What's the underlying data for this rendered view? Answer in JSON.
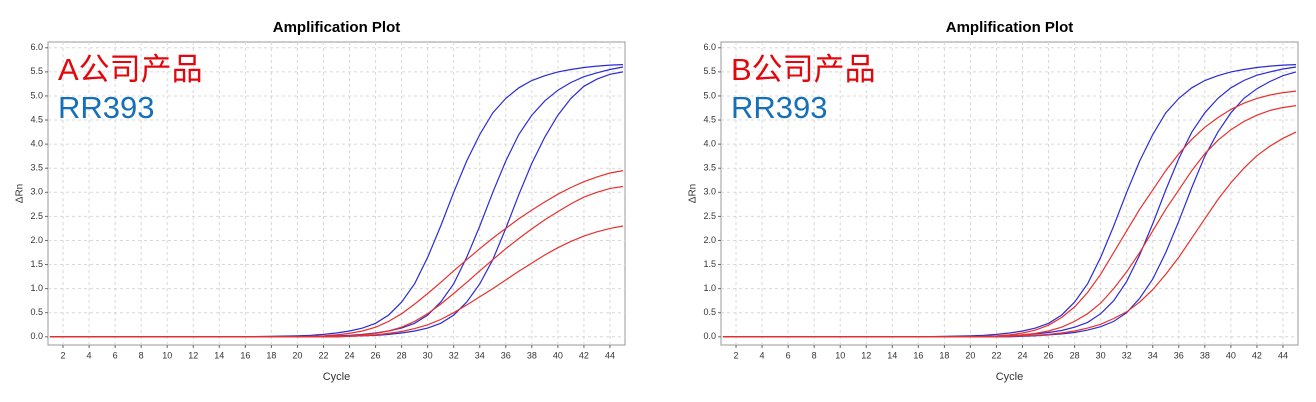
{
  "chart_data": [
    {
      "type": "line",
      "title": "Amplification Plot",
      "x_label": "Cycle",
      "y_label": "ΔRn",
      "annotations": [
        {
          "text": "A公司产品",
          "color": "#e3070d"
        },
        {
          "text": "RR393",
          "color": "#1570b8"
        }
      ],
      "x": [
        1,
        4,
        8,
        12,
        16,
        20,
        21,
        22,
        23,
        24,
        25,
        26,
        27,
        28,
        29,
        30,
        31,
        32,
        33,
        34,
        35,
        36,
        37,
        38,
        39,
        40,
        41,
        42,
        43,
        44,
        45
      ],
      "xlim": [
        1,
        45
      ],
      "xticks": [
        2,
        4,
        6,
        8,
        10,
        12,
        14,
        16,
        18,
        20,
        22,
        24,
        26,
        28,
        30,
        32,
        34,
        36,
        38,
        40,
        42,
        44
      ],
      "ylim": [
        -0.17,
        6.12
      ],
      "yticks": [
        {
          "value": 0,
          "label": "0.0"
        },
        {
          "value": 0.5,
          "label": "0.5"
        },
        {
          "value": 1,
          "label": "1.0"
        },
        {
          "value": 1.5,
          "label": "1.5"
        },
        {
          "value": 2,
          "label": "2.0"
        },
        {
          "value": 2.5,
          "label": "2.5"
        },
        {
          "value": 3,
          "label": "3.0"
        },
        {
          "value": 3.5,
          "label": "3.5"
        },
        {
          "value": 4,
          "label": "4.0"
        },
        {
          "value": 4.5,
          "label": "4.5"
        },
        {
          "value": 5,
          "label": "5.0"
        },
        {
          "value": 5.5,
          "label": "5.5"
        },
        {
          "value": 6,
          "label": "6.0"
        }
      ],
      "grid": true,
      "series": [
        {
          "color": "#2b2bd6",
          "values": [
            0,
            0,
            0,
            0,
            0,
            0.02,
            0.03,
            0.05,
            0.08,
            0.12,
            0.18,
            0.28,
            0.45,
            0.72,
            1.1,
            1.65,
            2.3,
            3.0,
            3.65,
            4.2,
            4.65,
            4.95,
            5.17,
            5.32,
            5.42,
            5.5,
            5.55,
            5.59,
            5.62,
            5.64,
            5.65
          ]
        },
        {
          "color": "#2b2bd6",
          "values": [
            0,
            0,
            0,
            0,
            0,
            0,
            0,
            0.01,
            0.02,
            0.03,
            0.05,
            0.08,
            0.12,
            0.18,
            0.28,
            0.45,
            0.72,
            1.1,
            1.65,
            2.3,
            3.0,
            3.65,
            4.2,
            4.6,
            4.9,
            5.12,
            5.28,
            5.4,
            5.48,
            5.55,
            5.6
          ]
        },
        {
          "color": "#2b2bd6",
          "values": [
            0,
            0,
            0,
            0,
            0,
            0,
            0,
            0,
            0,
            0.01,
            0.02,
            0.03,
            0.05,
            0.08,
            0.12,
            0.18,
            0.28,
            0.45,
            0.72,
            1.1,
            1.6,
            2.25,
            2.95,
            3.6,
            4.15,
            4.6,
            4.95,
            5.2,
            5.35,
            5.45,
            5.5
          ]
        },
        {
          "color": "#e8302c",
          "values": [
            0,
            0,
            0,
            0,
            0,
            0,
            0.01,
            0.02,
            0.04,
            0.07,
            0.12,
            0.2,
            0.32,
            0.48,
            0.68,
            0.9,
            1.13,
            1.37,
            1.6,
            1.83,
            2.05,
            2.25,
            2.45,
            2.63,
            2.8,
            2.96,
            3.1,
            3.22,
            3.32,
            3.4,
            3.45
          ]
        },
        {
          "color": "#e8302c",
          "values": [
            0,
            0,
            0,
            0,
            0,
            0,
            0,
            0,
            0.01,
            0.02,
            0.04,
            0.07,
            0.12,
            0.2,
            0.32,
            0.48,
            0.68,
            0.9,
            1.13,
            1.37,
            1.6,
            1.83,
            2.04,
            2.24,
            2.43,
            2.6,
            2.76,
            2.9,
            3.0,
            3.08,
            3.12
          ]
        },
        {
          "color": "#e8302c",
          "values": [
            0,
            0,
            0,
            0,
            0,
            0,
            0,
            0,
            0,
            0.01,
            0.02,
            0.04,
            0.07,
            0.11,
            0.17,
            0.25,
            0.36,
            0.5,
            0.66,
            0.83,
            1.0,
            1.18,
            1.36,
            1.53,
            1.7,
            1.85,
            1.98,
            2.09,
            2.18,
            2.25,
            2.3
          ]
        }
      ]
    },
    {
      "type": "line",
      "title": "Amplification Plot",
      "x_label": "Cycle",
      "y_label": "ΔRn",
      "annotations": [
        {
          "text": "B公司产品",
          "color": "#e3070d"
        },
        {
          "text": "RR393",
          "color": "#1570b8"
        }
      ],
      "x": [
        1,
        4,
        8,
        12,
        16,
        20,
        21,
        22,
        23,
        24,
        25,
        26,
        27,
        28,
        29,
        30,
        31,
        32,
        33,
        34,
        35,
        36,
        37,
        38,
        39,
        40,
        41,
        42,
        43,
        44,
        45
      ],
      "xlim": [
        1,
        45
      ],
      "xticks": [
        2,
        4,
        6,
        8,
        10,
        12,
        14,
        16,
        18,
        20,
        22,
        24,
        26,
        28,
        30,
        32,
        34,
        36,
        38,
        40,
        42,
        44
      ],
      "ylim": [
        -0.17,
        6.12
      ],
      "yticks": [
        {
          "value": 0,
          "label": "0.0"
        },
        {
          "value": 0.5,
          "label": "0.5"
        },
        {
          "value": 1,
          "label": "1.0"
        },
        {
          "value": 1.5,
          "label": "1.5"
        },
        {
          "value": 2,
          "label": "2.0"
        },
        {
          "value": 2.5,
          "label": "2.5"
        },
        {
          "value": 3,
          "label": "3.0"
        },
        {
          "value": 3.5,
          "label": "3.5"
        },
        {
          "value": 4,
          "label": "4.0"
        },
        {
          "value": 4.5,
          "label": "4.5"
        },
        {
          "value": 5,
          "label": "5.0"
        },
        {
          "value": 5.5,
          "label": "5.5"
        },
        {
          "value": 6,
          "label": "6.0"
        }
      ],
      "grid": true,
      "series": [
        {
          "color": "#2b2bd6",
          "values": [
            0,
            0,
            0,
            0,
            0,
            0.02,
            0.03,
            0.05,
            0.08,
            0.12,
            0.18,
            0.28,
            0.45,
            0.72,
            1.1,
            1.65,
            2.3,
            3.0,
            3.65,
            4.2,
            4.65,
            4.95,
            5.17,
            5.32,
            5.42,
            5.5,
            5.55,
            5.59,
            5.62,
            5.64,
            5.65
          ]
        },
        {
          "color": "#2b2bd6",
          "values": [
            0,
            0,
            0,
            0,
            0,
            0,
            0,
            0.01,
            0.02,
            0.04,
            0.06,
            0.09,
            0.13,
            0.2,
            0.3,
            0.48,
            0.75,
            1.15,
            1.7,
            2.35,
            3.05,
            3.7,
            4.25,
            4.65,
            4.95,
            5.17,
            5.32,
            5.43,
            5.5,
            5.56,
            5.6
          ]
        },
        {
          "color": "#2b2bd6",
          "values": [
            0,
            0,
            0,
            0,
            0,
            0,
            0,
            0,
            0,
            0.01,
            0.02,
            0.04,
            0.06,
            0.09,
            0.14,
            0.21,
            0.32,
            0.5,
            0.8,
            1.2,
            1.75,
            2.4,
            3.1,
            3.75,
            4.25,
            4.65,
            4.95,
            5.15,
            5.3,
            5.42,
            5.5
          ]
        },
        {
          "color": "#e8302c",
          "values": [
            0,
            0,
            0,
            0,
            0,
            0,
            0.01,
            0.02,
            0.04,
            0.08,
            0.14,
            0.24,
            0.4,
            0.62,
            0.92,
            1.3,
            1.75,
            2.2,
            2.65,
            3.05,
            3.45,
            3.8,
            4.1,
            4.35,
            4.55,
            4.72,
            4.85,
            4.95,
            5.02,
            5.07,
            5.1
          ]
        },
        {
          "color": "#e8302c",
          "values": [
            0,
            0,
            0,
            0,
            0,
            0,
            0,
            0.01,
            0.02,
            0.04,
            0.07,
            0.12,
            0.2,
            0.32,
            0.48,
            0.7,
            1.0,
            1.35,
            1.75,
            2.2,
            2.65,
            3.05,
            3.45,
            3.8,
            4.08,
            4.3,
            4.47,
            4.6,
            4.7,
            4.76,
            4.8
          ]
        },
        {
          "color": "#e8302c",
          "values": [
            0,
            0,
            0,
            0,
            0,
            0,
            0,
            0,
            0.01,
            0.02,
            0.03,
            0.05,
            0.08,
            0.12,
            0.18,
            0.26,
            0.38,
            0.52,
            0.72,
            0.98,
            1.3,
            1.65,
            2.05,
            2.45,
            2.85,
            3.2,
            3.5,
            3.76,
            3.96,
            4.12,
            4.25
          ]
        }
      ]
    }
  ]
}
